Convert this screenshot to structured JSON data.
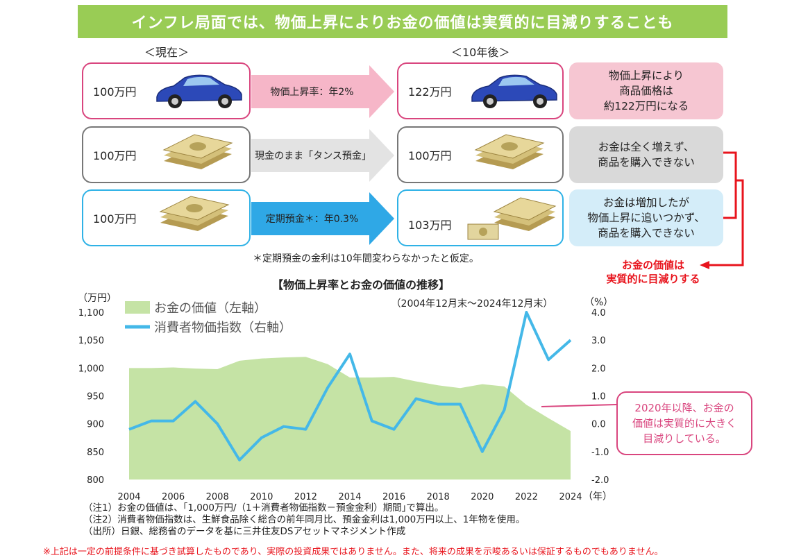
{
  "banner": {
    "title": "インフレ局面では、物価上昇によりお金の価値は実質的に目減りすることも"
  },
  "columns": {
    "now": "＜現在＞",
    "later": "＜10年後＞"
  },
  "rows": [
    {
      "now_amount": "100万円",
      "arrow_label": "物価上昇率：年2%",
      "later_amount": "122万円",
      "note_lines": [
        "物価上昇により",
        "商品価格は",
        "約122万円になる"
      ]
    },
    {
      "now_amount": "100万円",
      "arrow_label": "現金のまま「タンス預金」",
      "later_amount": "100万円",
      "note_lines": [
        "お金は全く増えず、",
        "商品を購入できない"
      ]
    },
    {
      "now_amount": "100万円",
      "arrow_label": "定期預金＊：年0.3%",
      "later_amount": "103万円",
      "note_lines": [
        "お金は増加したが",
        "物価上昇に追いつかず、",
        "商品を購入できない"
      ]
    }
  ],
  "asterisk_note": "＊定期預金の金利は10年間変わらなかったと仮定。",
  "conclusion_lines": [
    "お金の価値は",
    "実質的に目減りする"
  ],
  "callout_lines": [
    "2020年以降、お金の",
    "価値は実質的に大きく",
    "目減りしている。"
  ],
  "colors": {
    "area": "#c5e3a5",
    "line": "#44b8e8",
    "pink": "#d9457e",
    "red": "#e8141d",
    "banner": "#99cc55"
  },
  "chart_data": {
    "type": "area",
    "title": "【物価上昇率とお金の価値の推移】",
    "subtitle": "（2004年12月末～2024年12月末）",
    "left_unit": "（万円）",
    "right_unit": "（%）",
    "x_unit": "（年）",
    "x": [
      2004,
      2005,
      2006,
      2007,
      2008,
      2009,
      2010,
      2011,
      2012,
      2013,
      2014,
      2015,
      2016,
      2017,
      2018,
      2019,
      2020,
      2021,
      2022,
      2023,
      2024
    ],
    "x_ticks": [
      2004,
      2006,
      2008,
      2010,
      2012,
      2014,
      2016,
      2018,
      2020,
      2022,
      2024
    ],
    "left_axis": {
      "min": 800,
      "max": 1100,
      "ticks": [
        "800",
        "850",
        "900",
        "950",
        "1,000",
        "1,050",
        "1,100"
      ]
    },
    "right_axis": {
      "min": -2.0,
      "max": 4.0,
      "ticks": [
        "-2.0",
        "-1.0",
        "0.0",
        "1.0",
        "2.0",
        "3.0",
        "4.0"
      ]
    },
    "series": [
      {
        "name": "お金の価値（左軸）",
        "axis": "left",
        "type": "area",
        "values": [
          1000,
          1000,
          1001,
          999,
          998,
          1013,
          1017,
          1019,
          1020,
          1007,
          983,
          983,
          984,
          976,
          969,
          964,
          971,
          967,
          934,
          910,
          887
        ]
      },
      {
        "name": "消費者物価指数（右軸）",
        "axis": "right",
        "type": "line",
        "values": [
          -0.2,
          0.1,
          0.1,
          0.8,
          0.0,
          -1.3,
          -0.5,
          -0.1,
          -0.2,
          1.3,
          2.5,
          0.1,
          -0.2,
          0.9,
          0.7,
          0.7,
          -1.0,
          0.5,
          4.0,
          2.3,
          3.0
        ]
      }
    ]
  },
  "footnotes": [
    "（注1）お金の価値は、｢1,000万円/（1＋消費者物価指数－預金金利）期間｣で算出。",
    "（注2）消費者物価指数は、生鮮食品除く総合の前年同月比、預金金利は1,000万円以上、1年物を使用。",
    "（出所）日銀、総務省のデータを基に三井住友DSアセットマネジメント作成"
  ],
  "disclaimer": "※上記は一定の前提条件に基づき試算したものであり、実際の投資成果ではありません。また、将来の成果を示唆あるいは保証するものでもありません。"
}
